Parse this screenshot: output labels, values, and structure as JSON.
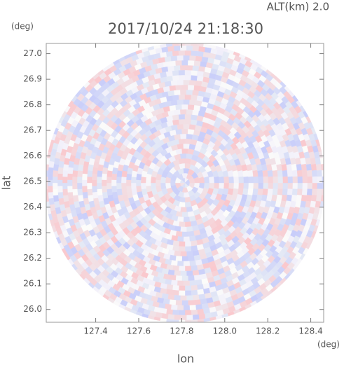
{
  "chart_data": {
    "type": "radar-ppi",
    "title": "2017/10/24 21:18:30",
    "subtitle": "ALT(km) 2.0",
    "x_label": "lon",
    "y_label": "lat",
    "x_unit": "(deg)",
    "y_unit": "(deg)",
    "xlim": [
      127.17,
      128.46
    ],
    "xticks": [
      {
        "value": 127.4,
        "label": "127.4"
      },
      {
        "value": 127.6,
        "label": "127.6"
      },
      {
        "value": 127.8,
        "label": "127.8"
      },
      {
        "value": 128.0,
        "label": "128.0"
      },
      {
        "value": 128.2,
        "label": "128.2"
      },
      {
        "value": 128.4,
        "label": "128.4"
      }
    ],
    "ylim": [
      25.95,
      27.04
    ],
    "yticks": [
      {
        "value": 26.0,
        "label": "26.0"
      },
      {
        "value": 26.1,
        "label": "26.1"
      },
      {
        "value": 26.2,
        "label": "26.2"
      },
      {
        "value": 26.3,
        "label": "26.3"
      },
      {
        "value": 26.4,
        "label": "26.4"
      },
      {
        "value": 26.5,
        "label": "26.5"
      },
      {
        "value": 26.6,
        "label": "26.6"
      },
      {
        "value": 26.7,
        "label": "26.7"
      },
      {
        "value": 26.8,
        "label": "26.8"
      },
      {
        "value": 26.9,
        "label": "26.9"
      },
      {
        "value": 27.0,
        "label": "27.0"
      }
    ]
  }
}
